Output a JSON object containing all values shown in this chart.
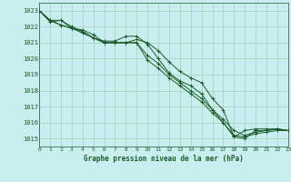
{
  "title": "Graphe pression niveau de la mer (hPa)",
  "bg_color": "#c8eef0",
  "grid_color": "#b0d8c8",
  "line_color": "#1a5c28",
  "xlim": [
    0,
    23
  ],
  "ylim": [
    1014.5,
    1023.5
  ],
  "yticks": [
    1015,
    1016,
    1017,
    1018,
    1019,
    1020,
    1021,
    1022,
    1023
  ],
  "xticks": [
    0,
    1,
    2,
    3,
    4,
    5,
    6,
    7,
    8,
    9,
    10,
    11,
    12,
    13,
    14,
    15,
    16,
    17,
    18,
    19,
    20,
    21,
    22,
    23
  ],
  "series": [
    [
      1023.0,
      1022.4,
      1022.4,
      1021.9,
      1021.8,
      1021.5,
      1021.0,
      1021.0,
      1021.0,
      1021.2,
      1021.0,
      1020.5,
      1019.8,
      1019.2,
      1018.8,
      1018.5,
      1017.5,
      1016.8,
      1015.1,
      1015.0,
      1015.5,
      1015.5,
      1015.6,
      1015.5
    ],
    [
      1023.0,
      1022.3,
      1022.4,
      1022.0,
      1021.7,
      1021.3,
      1021.1,
      1021.1,
      1021.4,
      1021.4,
      1020.9,
      1020.0,
      1019.1,
      1018.6,
      1018.3,
      1017.8,
      1016.8,
      1016.0,
      1015.1,
      1015.5,
      1015.6,
      1015.6,
      1015.6,
      1015.5
    ],
    [
      1023.0,
      1022.4,
      1022.1,
      1021.9,
      1021.7,
      1021.3,
      1021.0,
      1021.0,
      1021.0,
      1021.0,
      1020.2,
      1019.7,
      1019.0,
      1018.5,
      1018.0,
      1017.5,
      1016.8,
      1016.2,
      1015.5,
      1015.2,
      1015.4,
      1015.5,
      1015.6,
      1015.5
    ],
    [
      1023.0,
      1022.4,
      1022.1,
      1021.9,
      1021.6,
      1021.3,
      1021.0,
      1021.0,
      1021.0,
      1021.0,
      1019.9,
      1019.4,
      1018.8,
      1018.3,
      1017.8,
      1017.3,
      1016.6,
      1016.0,
      1015.2,
      1015.1,
      1015.3,
      1015.4,
      1015.5,
      1015.5
    ]
  ]
}
